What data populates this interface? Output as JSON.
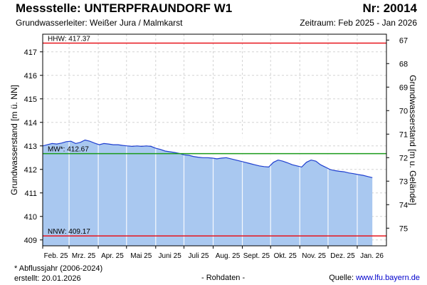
{
  "header": {
    "title": "Messstelle: UNTERPFRAUNDORF W1",
    "number": "Nr: 20014",
    "aquifer": "Grundwasserleiter:  Weißer Jura / Malmkarst",
    "period": "Zeitraum: Feb 2025 - Jan 2026"
  },
  "footer": {
    "note": "* Abflussjahr (2006-2024)",
    "created": "erstellt:  20.01.2026",
    "raw": "- Rohdaten -",
    "source_label": "Quelle: ",
    "source_link": "www.lfu.bayern.de"
  },
  "chart_data": {
    "type": "area",
    "ylabel": "Grundwasserstand [m ü. NN]",
    "y2label": "Grundwasserstand [m u. Gelände]",
    "ylim": [
      408.75,
      417.75
    ],
    "y2lim": [
      75.75,
      66.75
    ],
    "yticks": [
      409,
      410,
      411,
      412,
      413,
      414,
      415,
      416,
      417
    ],
    "y2ticks": [
      67,
      68,
      69,
      70,
      71,
      72,
      73,
      74,
      75
    ],
    "grid": true,
    "x_range": [
      "2025-02-01",
      "2026-02-01"
    ],
    "x_months": [
      "Feb. 25",
      "Mrz. 25",
      "Apr. 25",
      "Mai 25",
      "Juni 25",
      "Juli 25",
      "Aug. 25",
      "Sept. 25",
      "Okt. 25",
      "Nov. 25",
      "Dez. 25",
      "Jan. 26"
    ],
    "reference_lines": [
      {
        "label": "HHW: 417.37",
        "value": 417.37,
        "color": "#e8141c"
      },
      {
        "label": "MW*: 412.67",
        "value": 412.67,
        "color": "#1a9a1a"
      },
      {
        "label": "NNW: 409.17",
        "value": 409.17,
        "color": "#e8141c"
      }
    ],
    "colors": {
      "fill": "#a9c8f0",
      "line": "#1f3fcf"
    },
    "series": [
      {
        "x": [
          "2025-02-01",
          "2025-02-06",
          "2025-02-11",
          "2025-02-16",
          "2025-02-21",
          "2025-02-26",
          "2025-03-03",
          "2025-03-08",
          "2025-03-13",
          "2025-03-18",
          "2025-03-23",
          "2025-03-28",
          "2025-04-02",
          "2025-04-07",
          "2025-04-12",
          "2025-04-17",
          "2025-04-22",
          "2025-04-27",
          "2025-05-02",
          "2025-05-07",
          "2025-05-12",
          "2025-05-17",
          "2025-05-22",
          "2025-05-27",
          "2025-06-01",
          "2025-06-06",
          "2025-06-11",
          "2025-06-16",
          "2025-06-21",
          "2025-06-26",
          "2025-07-01",
          "2025-07-06",
          "2025-07-11",
          "2025-07-16",
          "2025-07-21",
          "2025-07-26",
          "2025-07-31",
          "2025-08-05",
          "2025-08-10",
          "2025-08-15",
          "2025-08-20",
          "2025-08-25",
          "2025-08-30",
          "2025-09-04",
          "2025-09-09",
          "2025-09-14",
          "2025-09-19",
          "2025-09-24",
          "2025-09-29",
          "2025-10-04",
          "2025-10-09",
          "2025-10-14",
          "2025-10-19",
          "2025-10-24",
          "2025-10-29",
          "2025-11-03",
          "2025-11-08",
          "2025-11-13",
          "2025-11-18",
          "2025-11-23",
          "2025-11-28",
          "2025-12-03",
          "2025-12-08",
          "2025-12-13",
          "2025-12-18",
          "2025-12-23",
          "2025-12-28",
          "2026-01-02",
          "2026-01-07",
          "2026-01-12",
          "2026-01-17"
        ],
        "values": [
          413.0,
          413.05,
          413.1,
          413.08,
          413.12,
          413.18,
          413.2,
          413.1,
          413.15,
          413.25,
          413.2,
          413.12,
          413.05,
          413.1,
          413.08,
          413.05,
          413.05,
          413.02,
          413.0,
          412.98,
          413.0,
          412.98,
          413.0,
          412.98,
          412.9,
          412.85,
          412.78,
          412.75,
          412.72,
          412.68,
          412.62,
          412.6,
          412.55,
          412.52,
          412.5,
          412.5,
          412.48,
          412.45,
          412.48,
          412.5,
          412.45,
          412.4,
          412.35,
          412.3,
          412.25,
          412.2,
          412.15,
          412.12,
          412.1,
          412.3,
          412.4,
          412.35,
          412.28,
          412.2,
          412.15,
          412.1,
          412.3,
          412.4,
          412.35,
          412.2,
          412.1,
          412.0,
          411.95,
          411.92,
          411.9,
          411.85,
          411.82,
          411.78,
          411.75,
          411.7,
          411.65
        ]
      }
    ]
  }
}
